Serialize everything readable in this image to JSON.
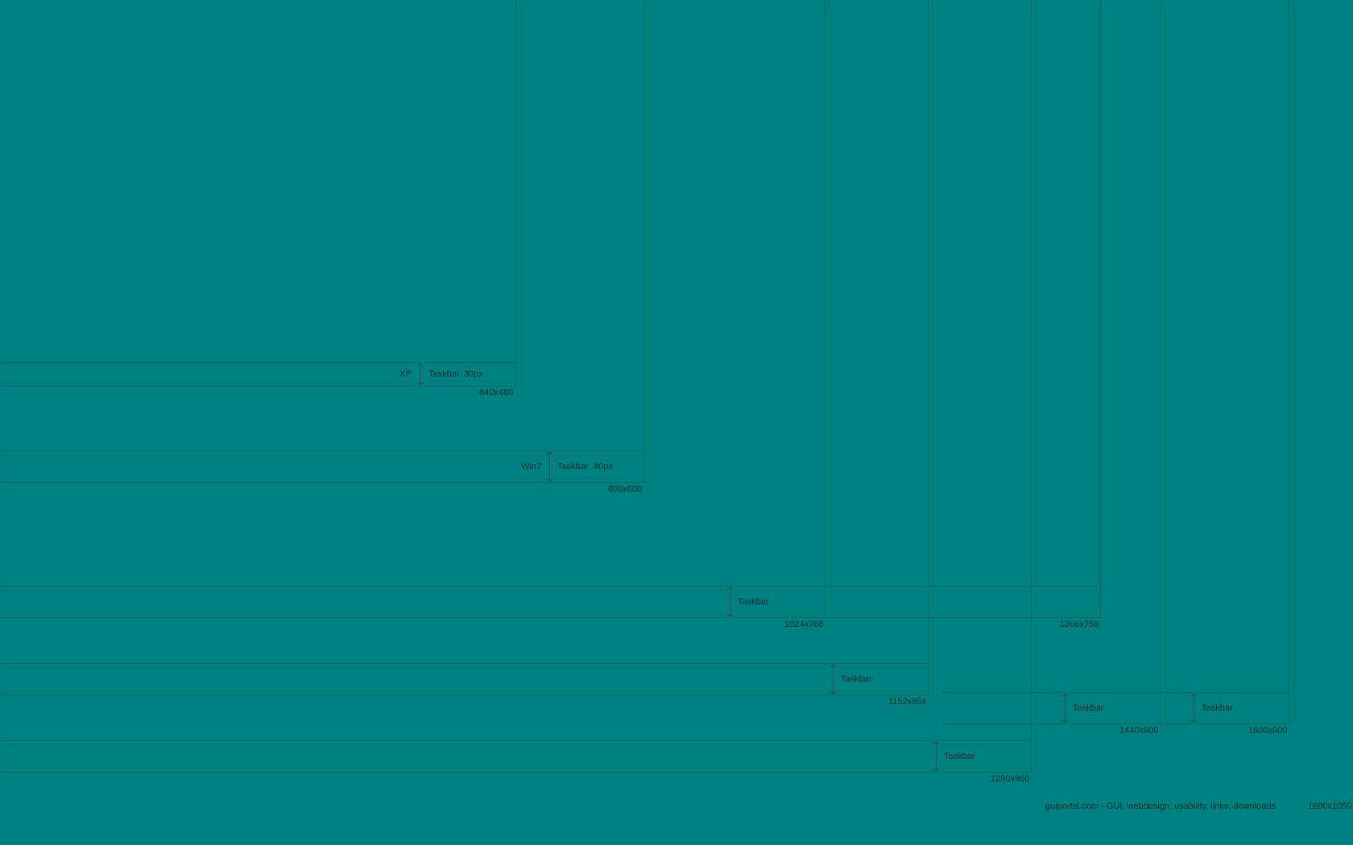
{
  "resolutions": [
    {
      "label": "640x480"
    },
    {
      "label": "800x600"
    },
    {
      "label": "1024x768"
    },
    {
      "label": "1366x768"
    },
    {
      "label": "1152x864"
    },
    {
      "label": "1440x900"
    },
    {
      "label": "1600x900"
    },
    {
      "label": "1280x960"
    }
  ],
  "taskbars": {
    "xp": {
      "os_label": "XP",
      "text": "Taskbar",
      "height_text": "30px"
    },
    "win7": {
      "os_label": "Win7",
      "text": "Taskbar",
      "height_text": "40px"
    },
    "t1024": {
      "text": "Taskbar"
    },
    "t1152": {
      "text": "Taskbar"
    },
    "t1440": {
      "text": "Taskbar"
    },
    "t1600": {
      "text": "Taskbar"
    },
    "t1280": {
      "text": "Taskbar"
    }
  },
  "footer": {
    "credit": "guiportal.com - GUI, webdesign, usability, links, downloads",
    "resolution": "1680x1050"
  },
  "colors": {
    "background": "#008080",
    "lines": "#1f4f4f",
    "text": "#0b2f2f"
  },
  "icons": [
    "double-headed-arrow-icon"
  ]
}
